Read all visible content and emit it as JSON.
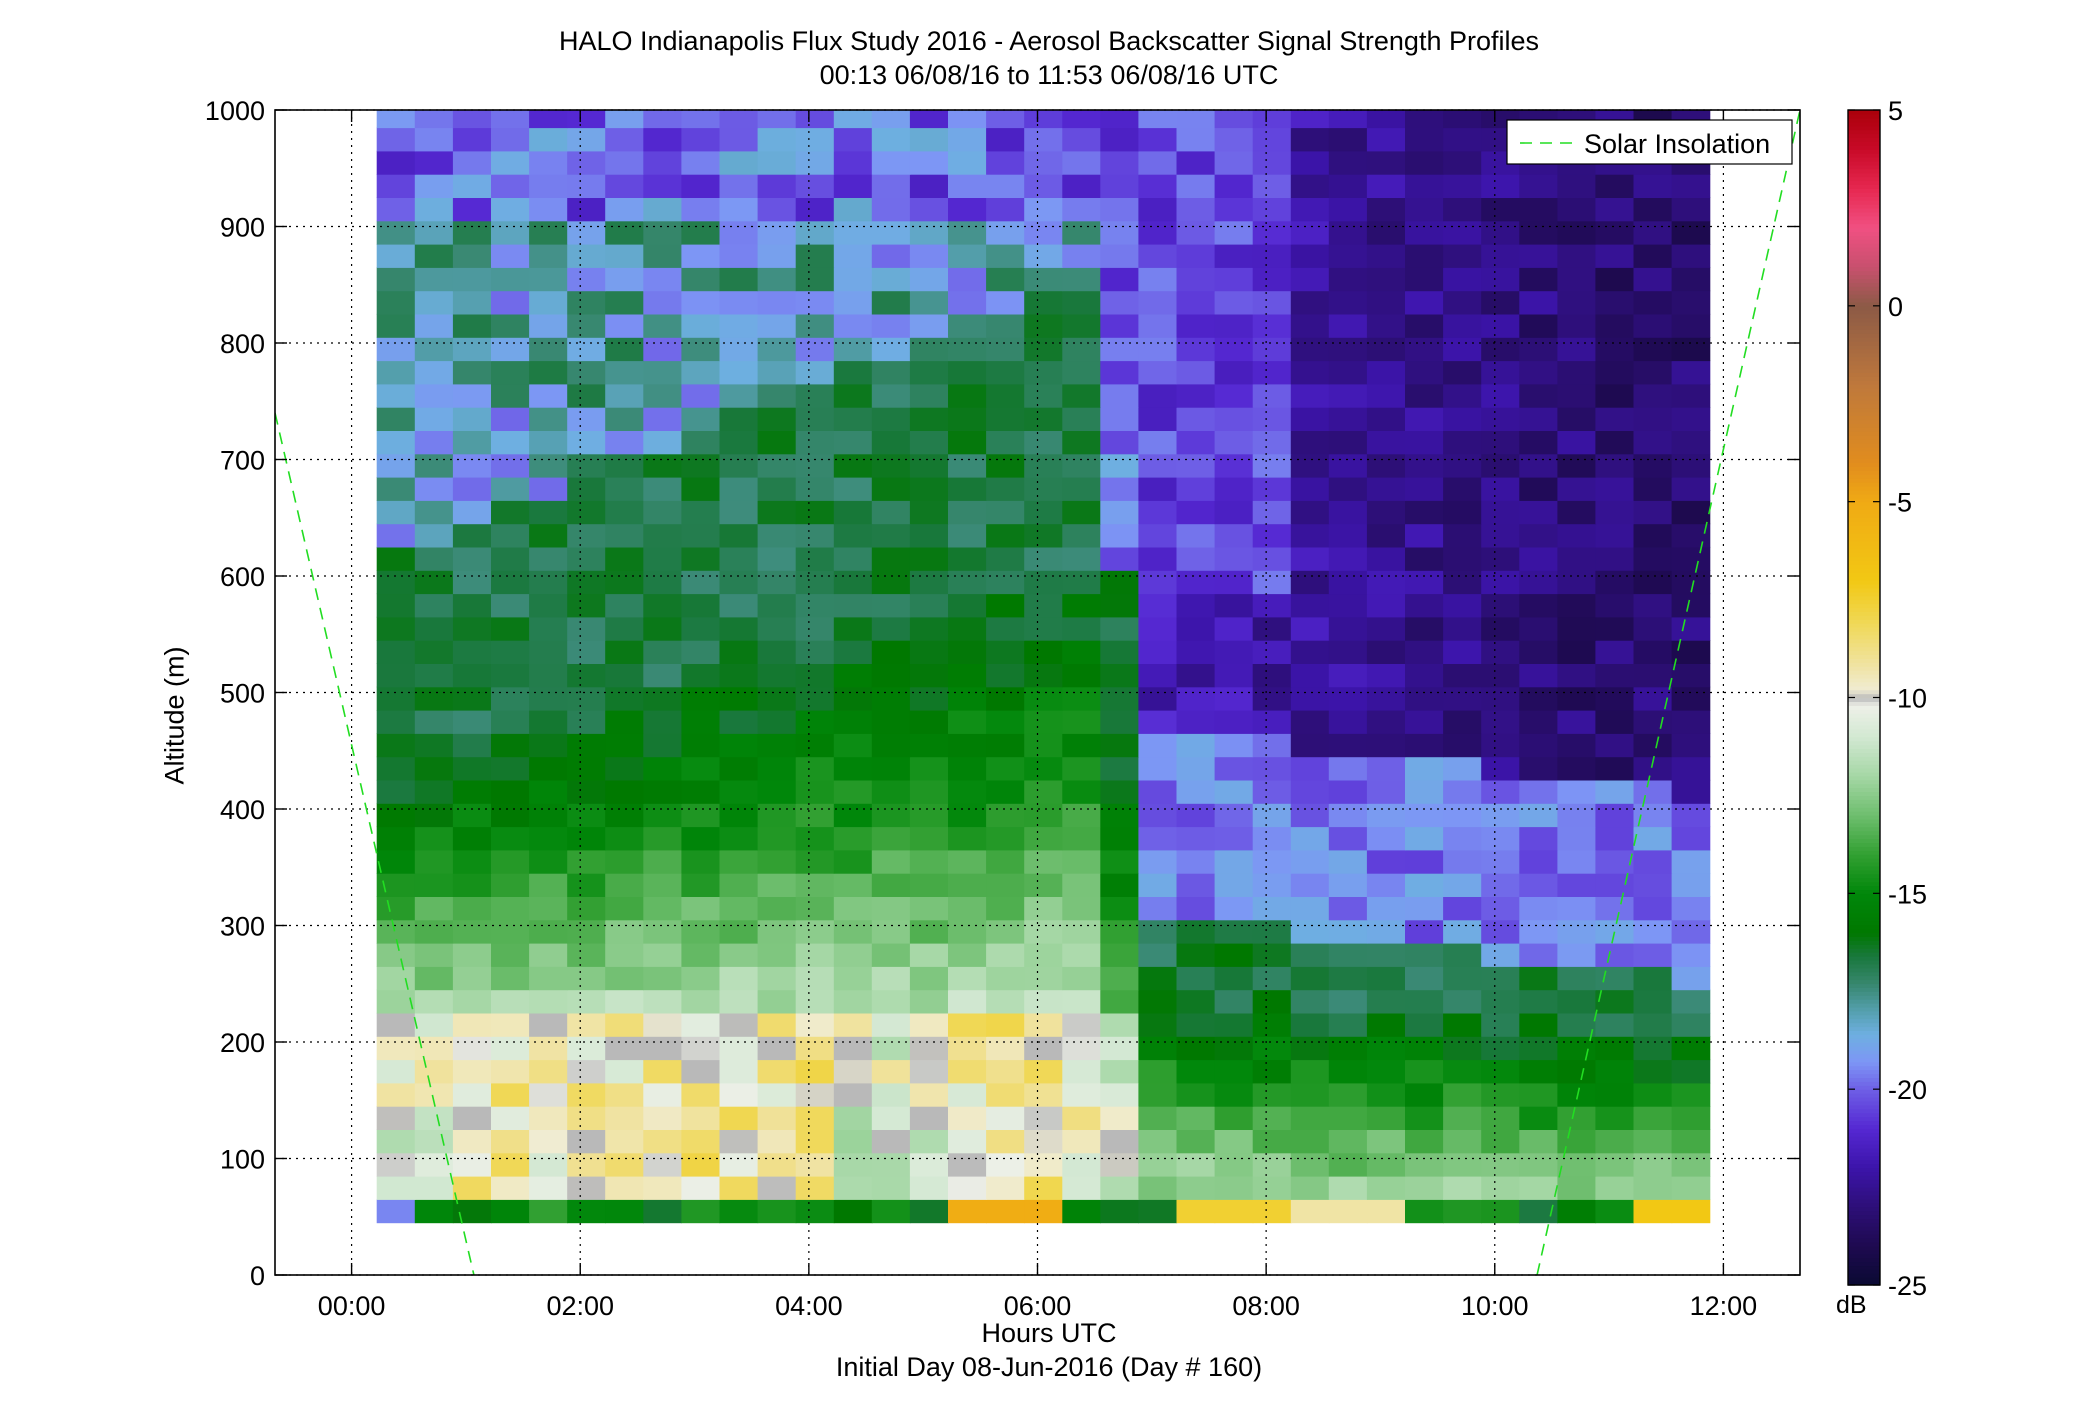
{
  "chart_data": {
    "type": "heatmap",
    "title": "HALO Indianapolis Flux Study 2016 - Aerosol Backscatter Signal Strength Profiles",
    "subtitle": "00:13 06/08/16 to 11:53 06/08/16  UTC",
    "xlabel": "Hours UTC",
    "xlabel2": "Initial Day 08-Jun-2016 (Day # 160)",
    "ylabel": "Altitude (m)",
    "xlim": [
      -0.67,
      12.67
    ],
    "ylim": [
      0,
      1000
    ],
    "x_ticks": [
      "00:00",
      "02:00",
      "04:00",
      "06:00",
      "08:00",
      "10:00",
      "12:00"
    ],
    "x_tick_values": [
      0,
      2,
      4,
      6,
      8,
      10,
      12
    ],
    "y_ticks": [
      "0",
      "100",
      "200",
      "300",
      "400",
      "500",
      "600",
      "700",
      "800",
      "900",
      "1000"
    ],
    "y_tick_values": [
      0,
      100,
      200,
      300,
      400,
      500,
      600,
      700,
      800,
      900,
      1000
    ],
    "grid": true,
    "colorbar": {
      "units": "dB",
      "range": [
        -25,
        5
      ],
      "ticks": [
        "5",
        "0",
        "-5",
        "-10",
        "-15",
        "-20",
        "-25"
      ],
      "tick_values": [
        5,
        0,
        -5,
        -10,
        -15,
        -20,
        -25
      ]
    },
    "legend": {
      "placement": "top-right",
      "entries": [
        "Solar Insolation"
      ]
    },
    "heatmap": {
      "time_start_h": 0.22,
      "time_end_h": 11.88,
      "alt_start_m": 45,
      "alt_step_m": 20,
      "ncols": 35,
      "nrows": 48
    },
    "solar_insolation": [
      {
        "x": [
          -0.67,
          1.07
        ],
        "y": [
          740,
          0
        ]
      },
      {
        "x": [
          10.37,
          12.67
        ],
        "y": [
          0,
          1000
        ]
      }
    ],
    "colors": {
      "line": "#22dd22",
      "axes": "#000000"
    }
  }
}
